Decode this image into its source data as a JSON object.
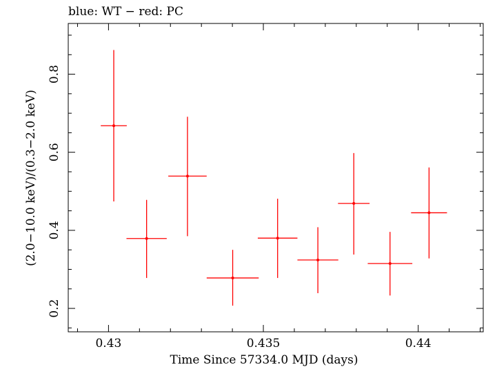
{
  "chart_data": {
    "type": "scatter",
    "title": "blue: WT − red: PC",
    "xlabel": "Time Since 57334.0 MJD (days)",
    "ylabel": "(2.0−10.0 keV)/(0.3−2.0 keV)",
    "xlim": [
      0.4287,
      0.4421
    ],
    "ylim": [
      0.14,
      0.93
    ],
    "xticks": [
      {
        "value": 0.43,
        "label": "0.43"
      },
      {
        "value": 0.435,
        "label": "0.435"
      },
      {
        "value": 0.44,
        "label": "0.44"
      }
    ],
    "yticks": [
      {
        "value": 0.2,
        "label": "0.2"
      },
      {
        "value": 0.4,
        "label": "0.4"
      },
      {
        "value": 0.6,
        "label": "0.6"
      },
      {
        "value": 0.8,
        "label": "0.8"
      }
    ],
    "x_minor_step": 0.001,
    "y_minor_step": 0.05,
    "grid": false,
    "series": [
      {
        "color": "#ff0000",
        "points": [
          {
            "x": 0.43017,
            "xerr": 0.00042,
            "y": 0.668,
            "ylo": 0.474,
            "yhi": 0.862
          },
          {
            "x": 0.43123,
            "xerr": 0.00065,
            "y": 0.379,
            "ylo": 0.278,
            "yhi": 0.478
          },
          {
            "x": 0.43255,
            "xerr": 0.00062,
            "y": 0.539,
            "ylo": 0.385,
            "yhi": 0.691
          },
          {
            "x": 0.43401,
            "xerr": 0.00084,
            "y": 0.278,
            "ylo": 0.207,
            "yhi": 0.35
          },
          {
            "x": 0.43546,
            "xerr": 0.00064,
            "y": 0.38,
            "ylo": 0.278,
            "yhi": 0.481
          },
          {
            "x": 0.43676,
            "xerr": 0.00066,
            "y": 0.324,
            "ylo": 0.239,
            "yhi": 0.408
          },
          {
            "x": 0.43792,
            "xerr": 0.00051,
            "y": 0.469,
            "ylo": 0.338,
            "yhi": 0.598
          },
          {
            "x": 0.43909,
            "xerr": 0.00072,
            "y": 0.315,
            "ylo": 0.233,
            "yhi": 0.396
          },
          {
            "x": 0.44035,
            "xerr": 0.00058,
            "y": 0.445,
            "ylo": 0.328,
            "yhi": 0.561
          }
        ]
      }
    ]
  }
}
